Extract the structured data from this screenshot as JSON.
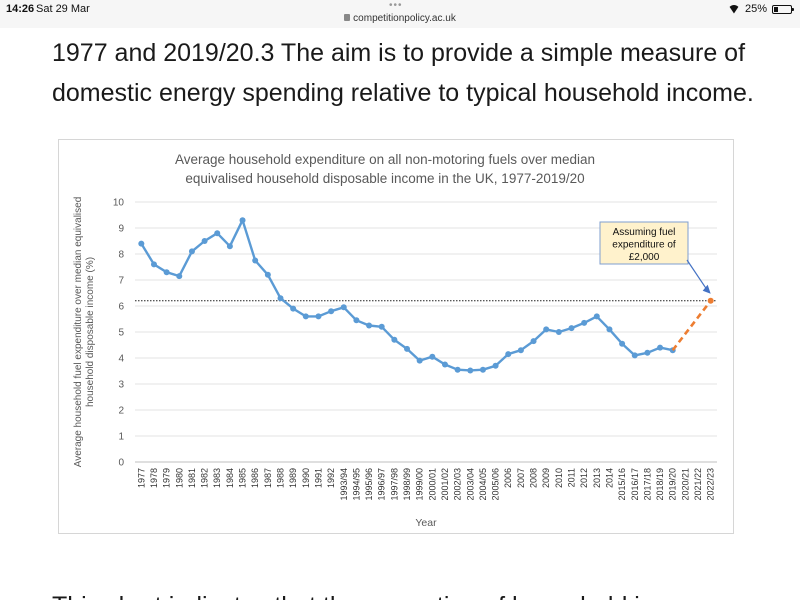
{
  "status_bar": {
    "time": "14:26",
    "date": "Sat 29 Mar",
    "url": "competitionpolicy.ac.uk",
    "battery": "25%",
    "battery_level": 0.25
  },
  "article": {
    "line1": "1977 and 2019/20.3 The aim is to provide a simple measure of",
    "line2": "domestic energy spending relative to typical household income.",
    "line3": "This chart indicates that the proportion of household income"
  },
  "chart_data": {
    "type": "line",
    "title": "Average household expenditure on all non-motoring fuels over median equivalised household disposable income in the UK, 1977-2019/20",
    "title_lines": [
      "Average household expenditure on all non-motoring fuels over median",
      "equivalised household disposable income in the UK, 1977-2019/20"
    ],
    "xlabel": "Year",
    "ylabel": "Average household fuel expenditure over median equivalised household disposable income (%)",
    "ylabel_lines": [
      "Average household fuel expenditure over median equivalised",
      "household disposable income (%)"
    ],
    "ylim": [
      0,
      10
    ],
    "yticks": [
      0,
      1,
      2,
      3,
      4,
      5,
      6,
      7,
      8,
      9,
      10
    ],
    "grid": true,
    "categories": [
      "1977",
      "1978",
      "1979",
      "1980",
      "1981",
      "1982",
      "1983",
      "1984",
      "1985",
      "1986",
      "1987",
      "1988",
      "1989",
      "1990",
      "1991",
      "1992",
      "1993/94",
      "1994/95",
      "1995/96",
      "1996/97",
      "1997/98",
      "1998/99",
      "1999/00",
      "2000/01",
      "2001/02",
      "2002/03",
      "2003/04",
      "2004/05",
      "2005/06",
      "2006",
      "2007",
      "2008",
      "2009",
      "2010",
      "2011",
      "2012",
      "2013",
      "2014",
      "2015/16",
      "2016/17",
      "2017/18",
      "2018/19",
      "2019/20",
      "2020/21",
      "2021/22",
      "2022/23"
    ],
    "series": [
      {
        "color": "#5b9bd5",
        "style": "solid",
        "values": [
          8.4,
          7.6,
          7.3,
          7.15,
          8.1,
          8.5,
          8.8,
          8.3,
          9.3,
          7.75,
          7.2,
          6.3,
          5.9,
          5.6,
          5.6,
          5.8,
          5.95,
          5.45,
          5.25,
          5.2,
          4.7,
          4.35,
          3.9,
          4.05,
          3.75,
          3.55,
          3.52,
          3.55,
          3.7,
          4.15,
          4.3,
          4.65,
          5.1,
          5.0,
          5.15,
          5.35,
          5.6,
          5.1,
          4.55,
          4.1,
          4.2,
          4.4,
          4.3,
          null,
          null,
          null
        ]
      },
      {
        "color": "#ed7d31",
        "style": "dashed",
        "values": [
          null,
          null,
          null,
          null,
          null,
          null,
          null,
          null,
          null,
          null,
          null,
          null,
          null,
          null,
          null,
          null,
          null,
          null,
          null,
          null,
          null,
          null,
          null,
          null,
          null,
          null,
          null,
          null,
          null,
          null,
          null,
          null,
          null,
          null,
          null,
          null,
          null,
          null,
          null,
          null,
          null,
          null,
          4.3,
          null,
          null,
          6.2
        ]
      }
    ],
    "reference_line": {
      "value": 6.2,
      "style": "dotted",
      "color": "#222222"
    },
    "annotation": {
      "lines": [
        "Assuming fuel",
        "expenditure of",
        "£2,000"
      ],
      "points_to": "2022/23",
      "fill": "#fff2cc",
      "border": "#7f9fcf"
    }
  }
}
